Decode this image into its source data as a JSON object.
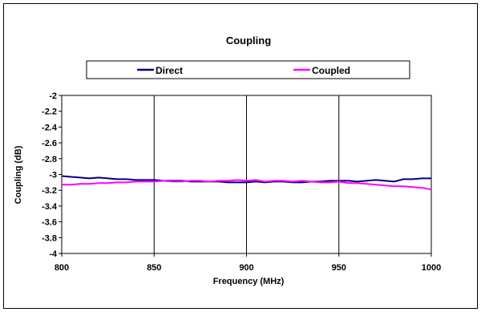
{
  "chart_data": {
    "type": "line",
    "title": "Coupling",
    "xlabel": "Frequency (MHz)",
    "ylabel": "Coupling (dB)",
    "xlim": [
      800,
      1000
    ],
    "ylim": [
      -4,
      -2
    ],
    "xticks": [
      800,
      850,
      900,
      950,
      1000
    ],
    "yticks": [
      -2,
      -2.2,
      -2.4,
      -2.6,
      -2.8,
      -3,
      -3.2,
      -3.4,
      -3.6,
      -3.8,
      -4
    ],
    "grid": "vertical major gridlines",
    "legend_position": "top",
    "x": [
      800,
      805,
      810,
      815,
      820,
      825,
      830,
      835,
      840,
      845,
      850,
      855,
      860,
      865,
      870,
      875,
      880,
      885,
      890,
      895,
      900,
      905,
      910,
      915,
      920,
      925,
      930,
      935,
      940,
      945,
      950,
      955,
      960,
      965,
      970,
      975,
      980,
      985,
      990,
      995,
      1000
    ],
    "series": [
      {
        "name": "Direct",
        "color": "#000080",
        "values": [
          -3.02,
          -3.03,
          -3.04,
          -3.05,
          -3.04,
          -3.05,
          -3.06,
          -3.06,
          -3.07,
          -3.07,
          -3.07,
          -3.08,
          -3.08,
          -3.08,
          -3.09,
          -3.09,
          -3.09,
          -3.09,
          -3.1,
          -3.1,
          -3.1,
          -3.09,
          -3.1,
          -3.09,
          -3.09,
          -3.1,
          -3.1,
          -3.09,
          -3.09,
          -3.08,
          -3.08,
          -3.08,
          -3.09,
          -3.08,
          -3.07,
          -3.08,
          -3.09,
          -3.06,
          -3.06,
          -3.05,
          -3.05
        ]
      },
      {
        "name": "Coupled",
        "color": "#ff00ff",
        "values": [
          -3.13,
          -3.13,
          -3.12,
          -3.12,
          -3.11,
          -3.11,
          -3.1,
          -3.1,
          -3.09,
          -3.09,
          -3.09,
          -3.08,
          -3.09,
          -3.09,
          -3.08,
          -3.08,
          -3.09,
          -3.08,
          -3.08,
          -3.07,
          -3.08,
          -3.07,
          -3.09,
          -3.08,
          -3.08,
          -3.09,
          -3.08,
          -3.09,
          -3.1,
          -3.1,
          -3.09,
          -3.11,
          -3.11,
          -3.12,
          -3.13,
          -3.14,
          -3.15,
          -3.15,
          -3.16,
          -3.17,
          -3.19
        ]
      }
    ]
  }
}
